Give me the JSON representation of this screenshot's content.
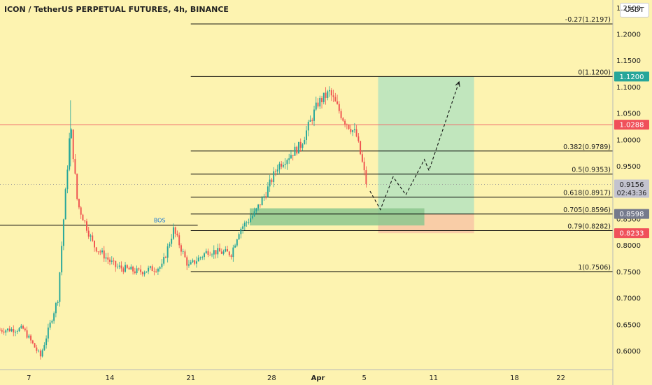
{
  "header": {
    "title": "ICON / TetherUS PERPETUAL FUTURES, 4h, BINANCE",
    "unit": "USDT"
  },
  "colors": {
    "background": "#fdf3b0",
    "candle_up": "#26a69a",
    "candle_down": "#ef5350",
    "hline": "#000000",
    "red_line": "#f06d6d",
    "profit_zone": "#b6e3bf",
    "loss_zone": "#f8c9a6",
    "entry_zone": "#8dc78f",
    "price_badge": "#26a69a",
    "price_badge_red": "#f0505a",
    "price_badge_gray": "#757a8c",
    "bos": "#1976d2"
  },
  "chart_data": {
    "type": "candlestick",
    "symbol": "ICON / TetherUS PERPETUAL FUTURES",
    "timeframe": "4h",
    "exchange": "BINANCE",
    "y_axis": {
      "range": [
        0.565,
        1.265
      ],
      "ticks": [
        "1.2500",
        "1.2000",
        "1.1500",
        "1.1000",
        "1.0500",
        "1.0000",
        "0.9500",
        "0.9000",
        "0.8500",
        "0.8000",
        "0.7500",
        "0.7000",
        "0.6500",
        "0.6000"
      ]
    },
    "x_axis": {
      "ticks": [
        {
          "label": "7",
          "day": 0
        },
        {
          "label": "14",
          "day": 7
        },
        {
          "label": "21",
          "day": 14
        },
        {
          "label": "28",
          "day": 21
        },
        {
          "label": "Apr",
          "day": 25
        },
        {
          "label": "5",
          "day": 29
        },
        {
          "label": "11",
          "day": 35
        },
        {
          "label": "18",
          "day": 42
        },
        {
          "label": "22",
          "day": 46
        }
      ],
      "range_days": [
        -2.5,
        50.5
      ]
    },
    "fib_levels": [
      {
        "label": "-0.27(1.2197)",
        "value": 1.2197
      },
      {
        "label": "0(1.1200)",
        "value": 1.12
      },
      {
        "label": "0.382(0.9789)",
        "value": 0.9789
      },
      {
        "label": "0.5(0.9353)",
        "value": 0.9353
      },
      {
        "label": "0.618(0.8917)",
        "value": 0.8917
      },
      {
        "label": "0.705(0.8596)",
        "value": 0.8596
      },
      {
        "label": "0.79(0.8282)",
        "value": 0.8282
      },
      {
        "label": "1(0.7506)",
        "value": 0.7506
      }
    ],
    "fib_start_day": 14,
    "red_line": {
      "value": 1.0288
    },
    "bos": {
      "label": "BOS",
      "value": 0.8385,
      "label_day": 10.8
    },
    "price_labels": [
      {
        "text": "1.1200",
        "value": 1.12,
        "color": "#26a69a"
      },
      {
        "text": "1.0288",
        "value": 1.0288,
        "color": "#f0505a"
      },
      {
        "text": "0.9156",
        "value": 0.9156,
        "color": "#c3c3cf",
        "sub": "02:43:36"
      },
      {
        "text": "0.8598",
        "value": 0.8598,
        "color": "#757a8c"
      },
      {
        "text": "0.8233",
        "value": 0.8233,
        "color": "#f0505a"
      }
    ],
    "current_price_dotted": 0.9156,
    "position": {
      "entry": 0.8598,
      "target": 1.12,
      "stop": 0.8233,
      "from_day": 30.2,
      "to_day": 38.5
    },
    "entry_zone": {
      "from_day": 19.1,
      "to_day": 34.2,
      "top": 0.8705,
      "bottom": 0.838
    },
    "projection_path": [
      [
        29.5,
        0.903
      ],
      [
        30.4,
        0.868
      ],
      [
        31.5,
        0.93
      ],
      [
        32.6,
        0.896
      ],
      [
        34.2,
        0.963
      ],
      [
        34.6,
        0.942
      ],
      [
        37.2,
        1.11
      ]
    ],
    "anchor_points": [
      [
        -2.5,
        0.64
      ],
      [
        -0.5,
        0.642
      ],
      [
        1.0,
        0.59
      ],
      [
        2.5,
        0.7
      ],
      [
        3.6,
        1.03
      ],
      [
        4.2,
        0.88
      ],
      [
        5.6,
        0.8
      ],
      [
        7.5,
        0.76
      ],
      [
        9.5,
        0.75
      ],
      [
        11.5,
        0.76
      ],
      [
        12.5,
        0.83
      ],
      [
        13.8,
        0.76
      ],
      [
        15.5,
        0.79
      ],
      [
        17.5,
        0.785
      ],
      [
        18.2,
        0.83
      ],
      [
        19.5,
        0.86
      ],
      [
        20.5,
        0.9
      ],
      [
        21.5,
        0.95
      ],
      [
        23.5,
        0.99
      ],
      [
        25.0,
        1.07
      ],
      [
        26.0,
        1.09
      ],
      [
        27.2,
        1.04
      ],
      [
        28.3,
        1.01
      ],
      [
        28.8,
        0.96
      ],
      [
        29.2,
        0.915
      ]
    ]
  }
}
